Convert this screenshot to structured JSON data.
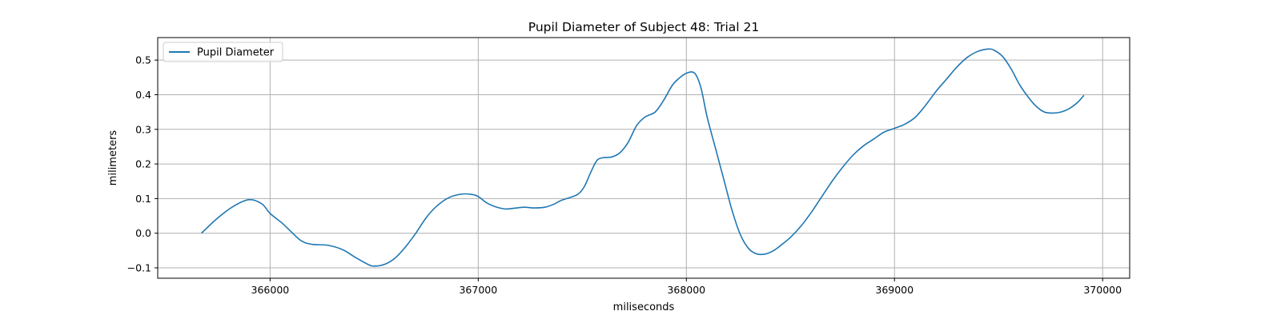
{
  "chart_data": {
    "type": "line",
    "title": "Pupil Diameter of Subject 48: Trial 21",
    "xlabel": "miliseconds",
    "ylabel": "milimeters",
    "xlim": [
      365460,
      370130
    ],
    "ylim": [
      -0.13,
      0.565
    ],
    "xticks": [
      366000,
      367000,
      368000,
      369000,
      370000
    ],
    "yticks": [
      -0.1,
      0.0,
      0.1,
      0.2,
      0.3,
      0.4,
      0.5
    ],
    "xtick_labels": [
      "366000",
      "367000",
      "368000",
      "369000",
      "370000"
    ],
    "ytick_labels": [
      "−0.1",
      "0.0",
      "0.1",
      "0.2",
      "0.3",
      "0.4",
      "0.5"
    ],
    "grid": true,
    "legend_position": "top-left",
    "series": [
      {
        "name": "Pupil Diameter",
        "color": "#1f77b4",
        "x": [
          365670,
          365750,
          365830,
          365900,
          365960,
          366000,
          366060,
          366100,
          366150,
          366200,
          366280,
          366350,
          366410,
          366470,
          366500,
          366550,
          366600,
          366650,
          366700,
          366750,
          366800,
          366860,
          366920,
          366970,
          367000,
          367040,
          367080,
          367130,
          367170,
          367220,
          367270,
          367320,
          367360,
          367400,
          367440,
          367480,
          367510,
          367540,
          367570,
          367600,
          367640,
          367680,
          367720,
          367760,
          367800,
          367850,
          367890,
          367930,
          367960,
          368000,
          368040,
          368070,
          368100,
          368140,
          368180,
          368220,
          368260,
          368300,
          368340,
          368380,
          368420,
          368460,
          368500,
          368550,
          368600,
          368650,
          368700,
          368750,
          368800,
          368850,
          368900,
          368950,
          369000,
          369050,
          369100,
          369150,
          369200,
          369250,
          369300,
          369350,
          369400,
          369450,
          369480,
          369520,
          369560,
          369600,
          369640,
          369680,
          369720,
          369760,
          369800,
          369840,
          369880,
          369910
        ],
        "y": [
          0.0,
          0.045,
          0.08,
          0.097,
          0.085,
          0.057,
          0.028,
          0.005,
          -0.022,
          -0.032,
          -0.035,
          -0.048,
          -0.07,
          -0.09,
          -0.095,
          -0.09,
          -0.072,
          -0.04,
          0.0,
          0.045,
          0.078,
          0.103,
          0.113,
          0.112,
          0.106,
          0.088,
          0.077,
          0.07,
          0.072,
          0.075,
          0.073,
          0.075,
          0.083,
          0.095,
          0.103,
          0.113,
          0.135,
          0.175,
          0.21,
          0.218,
          0.22,
          0.232,
          0.262,
          0.31,
          0.335,
          0.35,
          0.383,
          0.425,
          0.445,
          0.462,
          0.462,
          0.42,
          0.335,
          0.245,
          0.155,
          0.065,
          -0.005,
          -0.045,
          -0.06,
          -0.06,
          -0.05,
          -0.032,
          -0.012,
          0.02,
          0.06,
          0.105,
          0.15,
          0.19,
          0.225,
          0.252,
          0.272,
          0.292,
          0.303,
          0.315,
          0.335,
          0.37,
          0.41,
          0.445,
          0.48,
          0.508,
          0.525,
          0.532,
          0.528,
          0.51,
          0.475,
          0.43,
          0.395,
          0.367,
          0.35,
          0.347,
          0.35,
          0.36,
          0.378,
          0.398
        ]
      }
    ]
  }
}
